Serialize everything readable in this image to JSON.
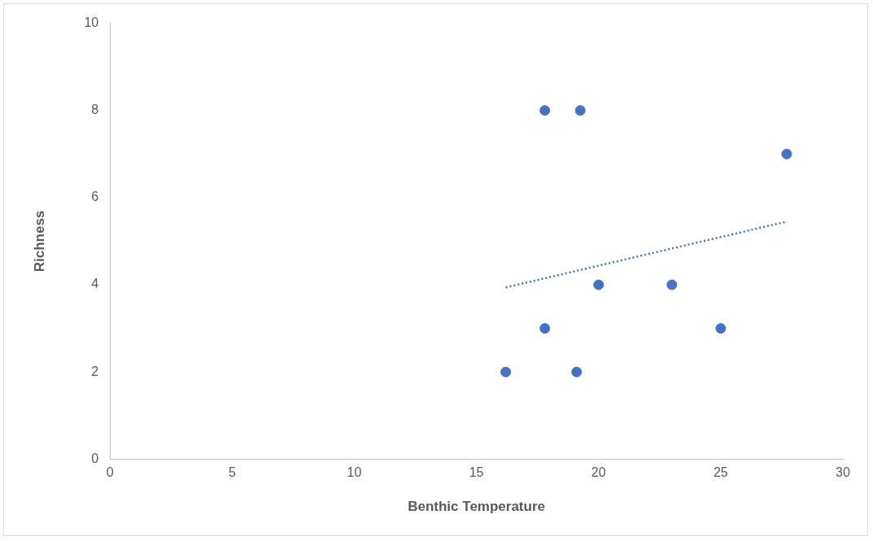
{
  "chart_data": {
    "type": "scatter",
    "xlabel": "Benthic Temperature",
    "ylabel": "Richness",
    "xlim": [
      0,
      30
    ],
    "xticks": [
      0,
      5,
      10,
      15,
      20,
      25,
      30
    ],
    "ylim": [
      0,
      10
    ],
    "yticks": [
      0,
      2,
      4,
      6,
      8,
      10
    ],
    "grid": false,
    "legend": false,
    "marker": "circle",
    "series": [
      {
        "color": "#4472c4",
        "x": [
          16.2,
          17.8,
          17.8,
          19.25,
          19.1,
          20.0,
          23.0,
          25.0,
          27.7
        ],
        "values": [
          2,
          3,
          8,
          8,
          2,
          4,
          4,
          3,
          7
        ]
      },
      {
        "type": "line",
        "color": "#4472c4",
        "line_style": "dotted",
        "marker": "none",
        "x": [
          16.2,
          27.7
        ],
        "values": [
          3.94,
          5.45
        ]
      }
    ]
  }
}
